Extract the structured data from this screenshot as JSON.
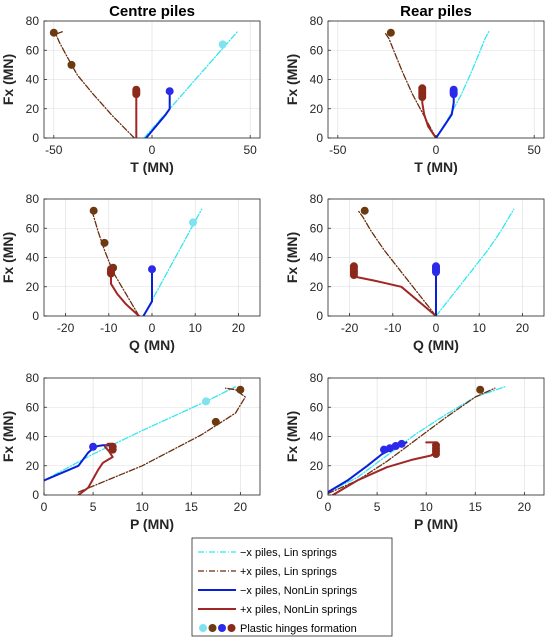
{
  "legend": {
    "entries": [
      {
        "key": "lin_minus",
        "label": "−x piles, Lin springs",
        "color": "#33e6f2",
        "dash": "6,2,1,2",
        "width": 1.3
      },
      {
        "key": "lin_plus",
        "label": "+x piles, Lin springs",
        "color": "#6b2e0f",
        "dash": "6,2,1,2",
        "width": 1.3
      },
      {
        "key": "nl_minus",
        "label": "−x piles, NonLin springs",
        "color": "#0a1fd9",
        "dash": "",
        "width": 2
      },
      {
        "key": "nl_plus",
        "label": "+x piles, NonLin springs",
        "color": "#a12626",
        "dash": "",
        "width": 2
      },
      {
        "key": "hinges",
        "label": "Plastic hinges formation",
        "markers": [
          "#7fe3ef",
          "#6b3a10",
          "#2a2ae8",
          "#8b2a1a"
        ]
      }
    ]
  },
  "chart_data": [
    {
      "id": "centre_T",
      "type": "line",
      "title": "Centre piles",
      "xlabel": "T (MN)",
      "ylabel": "Fx (MN)",
      "xlim": [
        -55,
        55
      ],
      "ylim": [
        0,
        80
      ],
      "xticks": [
        -50,
        0,
        50
      ],
      "yticks": [
        0,
        20,
        40,
        60,
        80
      ],
      "grid": true,
      "series": [
        {
          "key": "lin_minus",
          "x": [
            -4,
            44
          ],
          "y": [
            0,
            73.5
          ]
        },
        {
          "key": "lin_plus",
          "x": [
            -9,
            -20,
            -30,
            -38,
            -43,
            -47,
            -49,
            -45
          ],
          "y": [
            0,
            15,
            30,
            43,
            55,
            65,
            71,
            73
          ]
        },
        {
          "key": "nl_minus",
          "x": [
            -3,
            2,
            7,
            9,
            9,
            9
          ],
          "y": [
            0,
            8,
            16,
            20,
            27,
            32
          ]
        },
        {
          "key": "nl_plus",
          "x": [
            -8,
            -8,
            -8,
            -8
          ],
          "y": [
            0,
            5,
            20,
            32
          ]
        }
      ],
      "hinges": [
        {
          "key": "lin_minus",
          "points": [
            [
              36,
              64
            ]
          ]
        },
        {
          "key": "lin_plus",
          "points": [
            [
              -50,
              72
            ],
            [
              -41,
              50
            ]
          ]
        },
        {
          "key": "nl_minus",
          "points": [
            [
              9,
              32
            ]
          ]
        },
        {
          "key": "nl_plus",
          "points": [
            [
              -8,
              30
            ],
            [
              -8,
              31
            ],
            [
              -8,
              32
            ],
            [
              -8,
              33
            ]
          ]
        }
      ]
    },
    {
      "id": "rear_T",
      "type": "line",
      "title": "Rear piles",
      "xlabel": "T (MN)",
      "ylabel": "Fx (MN)",
      "xlim": [
        -55,
        55
      ],
      "ylim": [
        0,
        80
      ],
      "xticks": [
        -50,
        0,
        50
      ],
      "yticks": [
        0,
        20,
        40,
        60,
        80
      ],
      "grid": true,
      "series": [
        {
          "key": "lin_minus",
          "x": [
            0,
            7,
            13,
            18,
            22,
            25,
            27
          ],
          "y": [
            0,
            15,
            30,
            45,
            58,
            68,
            73
          ]
        },
        {
          "key": "lin_plus",
          "x": [
            0,
            -6,
            -12,
            -17,
            -21,
            -24,
            -26
          ],
          "y": [
            0,
            15,
            30,
            45,
            58,
            68,
            72
          ]
        },
        {
          "key": "nl_minus",
          "x": [
            0,
            4,
            8,
            9,
            9
          ],
          "y": [
            0,
            8,
            16,
            24,
            32
          ]
        },
        {
          "key": "nl_plus",
          "x": [
            0,
            -4,
            -6,
            -7,
            -7
          ],
          "y": [
            0,
            8,
            16,
            24,
            32
          ]
        }
      ],
      "hinges": [
        {
          "key": "lin_plus",
          "points": [
            [
              -23,
              72
            ]
          ]
        },
        {
          "key": "nl_minus",
          "points": [
            [
              9,
              30
            ],
            [
              9,
              31
            ],
            [
              9,
              32
            ],
            [
              9,
              33
            ]
          ]
        },
        {
          "key": "nl_plus",
          "points": [
            [
              -7,
              28
            ],
            [
              -7,
              29.5
            ],
            [
              -7,
              31
            ],
            [
              -7,
              32.5
            ],
            [
              -7,
              34
            ]
          ]
        }
      ]
    },
    {
      "id": "centre_Q",
      "type": "line",
      "xlabel": "Q (MN)",
      "ylabel": "Fx (MN)",
      "xlim": [
        -25,
        25
      ],
      "ylim": [
        0,
        80
      ],
      "xticks": [
        -20,
        -10,
        0,
        10,
        20
      ],
      "yticks": [
        0,
        20,
        40,
        60,
        80
      ],
      "grid": true,
      "series": [
        {
          "key": "lin_minus",
          "x": [
            -2,
            11.5
          ],
          "y": [
            0,
            73
          ]
        },
        {
          "key": "lin_plus",
          "x": [
            -3,
            -6,
            -9,
            -11,
            -12.5,
            -13.5,
            -14
          ],
          "y": [
            0,
            15,
            30,
            45,
            58,
            68,
            73
          ]
        },
        {
          "key": "nl_minus",
          "x": [
            -2,
            -1,
            0,
            0,
            0
          ],
          "y": [
            0,
            5,
            10,
            20,
            32
          ]
        },
        {
          "key": "nl_plus",
          "x": [
            -3,
            -6,
            -8,
            -9.5,
            -9.5
          ],
          "y": [
            0,
            8,
            15,
            22,
            32
          ]
        }
      ],
      "hinges": [
        {
          "key": "lin_minus",
          "points": [
            [
              9.5,
              64
            ]
          ]
        },
        {
          "key": "lin_plus",
          "points": [
            [
              -13.5,
              72
            ],
            [
              -11,
              50
            ],
            [
              -9,
              33
            ]
          ]
        },
        {
          "key": "nl_minus",
          "points": [
            [
              0,
              32
            ]
          ]
        },
        {
          "key": "nl_plus",
          "points": [
            [
              -9.5,
              29
            ],
            [
              -9.5,
              30
            ],
            [
              -9.5,
              31
            ],
            [
              -9.5,
              32
            ]
          ]
        }
      ]
    },
    {
      "id": "rear_Q",
      "type": "line",
      "xlabel": "Q (MN)",
      "ylabel": "Fx (MN)",
      "xlim": [
        -25,
        25
      ],
      "ylim": [
        0,
        80
      ],
      "xticks": [
        -20,
        -10,
        0,
        10,
        20
      ],
      "yticks": [
        0,
        20,
        40,
        60,
        80
      ],
      "grid": true,
      "series": [
        {
          "key": "lin_minus",
          "x": [
            0,
            4,
            8,
            12,
            15,
            17,
            18
          ],
          "y": [
            0,
            15,
            30,
            45,
            58,
            68,
            73
          ]
        },
        {
          "key": "lin_plus",
          "x": [
            0,
            -4,
            -8,
            -12,
            -15,
            -17,
            -18
          ],
          "y": [
            0,
            15,
            30,
            45,
            58,
            68,
            72
          ]
        },
        {
          "key": "nl_minus",
          "x": [
            0,
            0,
            0
          ],
          "y": [
            0,
            10,
            32
          ]
        },
        {
          "key": "nl_plus",
          "x": [
            0,
            -4,
            -8,
            -14,
            -19
          ],
          "y": [
            0,
            10,
            20,
            24,
            27
          ]
        }
      ],
      "hinges": [
        {
          "key": "lin_plus",
          "points": [
            [
              -16.5,
              72
            ]
          ]
        },
        {
          "key": "nl_minus",
          "points": [
            [
              0,
              30
            ],
            [
              0,
              31
            ],
            [
              0,
              32
            ],
            [
              0,
              33
            ],
            [
              0,
              34
            ]
          ]
        },
        {
          "key": "nl_plus",
          "points": [
            [
              -19,
              28
            ],
            [
              -19,
              29.5
            ],
            [
              -19,
              31
            ],
            [
              -19,
              32.5
            ],
            [
              -19,
              34
            ]
          ]
        }
      ]
    },
    {
      "id": "centre_P",
      "type": "line",
      "xlabel": "P (MN)",
      "ylabel": "Fx (MN)",
      "xlim": [
        0,
        22
      ],
      "ylim": [
        0,
        80
      ],
      "xticks": [
        0,
        5,
        10,
        15,
        20
      ],
      "yticks": [
        0,
        20,
        40,
        60,
        80
      ],
      "grid": true,
      "series": [
        {
          "key": "lin_minus",
          "x": [
            0,
            5,
            10,
            16.5,
            19.5
          ],
          "y": [
            10,
            28,
            44,
            64,
            74
          ]
        },
        {
          "key": "lin_plus",
          "x": [
            3.5,
            10,
            16,
            19.5,
            20.5,
            19.5,
            18.5
          ],
          "y": [
            2,
            20,
            41,
            56,
            67,
            72,
            73
          ]
        },
        {
          "key": "nl_minus",
          "x": [
            0,
            3.5,
            4.5,
            5,
            5.5,
            6,
            6.8,
            7
          ],
          "y": [
            10,
            20,
            29,
            32,
            33.5,
            34,
            34,
            33
          ]
        },
        {
          "key": "nl_plus",
          "x": [
            3.5,
            4.5,
            5,
            5.5,
            6,
            6.5,
            7,
            6.6,
            6.2,
            6.5,
            7
          ],
          "y": [
            0,
            5,
            11,
            17,
            22,
            24,
            26,
            30,
            33,
            35,
            35
          ]
        }
      ],
      "hinges": [
        {
          "key": "lin_minus",
          "points": [
            [
              16.5,
              64
            ]
          ]
        },
        {
          "key": "lin_plus",
          "points": [
            [
              20,
              72
            ],
            [
              17.5,
              50
            ]
          ]
        },
        {
          "key": "nl_minus",
          "points": [
            [
              5,
              33
            ]
          ]
        },
        {
          "key": "nl_plus",
          "points": [
            [
              7,
              31
            ],
            [
              7,
              33
            ]
          ]
        }
      ]
    },
    {
      "id": "rear_P",
      "type": "line",
      "xlabel": "P (MN)",
      "ylabel": "Fx (MN)",
      "xlim": [
        0,
        22
      ],
      "ylim": [
        0,
        80
      ],
      "xticks": [
        0,
        5,
        10,
        15,
        20
      ],
      "yticks": [
        0,
        20,
        40,
        60,
        80
      ],
      "grid": true,
      "series": [
        {
          "key": "lin_minus",
          "x": [
            0,
            3,
            6,
            9,
            12,
            15,
            18
          ],
          "y": [
            2,
            12,
            27,
            42,
            55,
            67,
            74
          ]
        },
        {
          "key": "lin_plus",
          "x": [
            0,
            3,
            6,
            9,
            12,
            15,
            17
          ],
          "y": [
            1,
            10,
            23,
            38,
            53,
            67,
            73
          ]
        },
        {
          "key": "nl_minus",
          "x": [
            0,
            2,
            4,
            5.5,
            7,
            8
          ],
          "y": [
            2,
            10,
            20,
            28,
            33,
            36
          ]
        },
        {
          "key": "nl_plus",
          "x": [
            0.5,
            3,
            6,
            8.5,
            10.5,
            11,
            11,
            10
          ],
          "y": [
            0,
            10,
            19,
            24,
            27,
            30,
            36,
            36
          ]
        }
      ],
      "hinges": [
        {
          "key": "lin_plus",
          "points": [
            [
              15.5,
              72
            ]
          ]
        },
        {
          "key": "nl_minus",
          "points": [
            [
              5.7,
              31
            ],
            [
              6.3,
              32
            ],
            [
              6.9,
              33.5
            ],
            [
              7.5,
              35
            ]
          ]
        },
        {
          "key": "nl_plus",
          "points": [
            [
              11,
              28
            ],
            [
              11,
              30
            ],
            [
              11,
              32
            ],
            [
              11,
              34
            ]
          ]
        }
      ]
    }
  ]
}
